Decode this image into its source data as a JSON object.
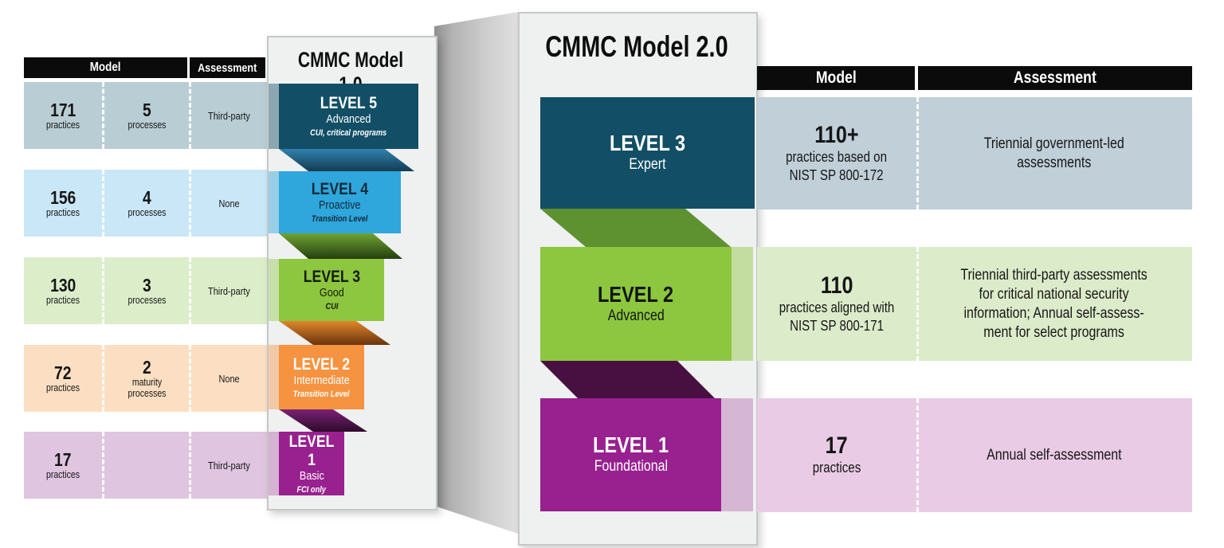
{
  "left_table": {
    "header": {
      "model": "Model",
      "assessment": "Assessment"
    },
    "rows": [
      {
        "practices_value": "171",
        "practices_label": "practices",
        "processes_value": "5",
        "processes_label": "processes",
        "assessment": "Third-party"
      },
      {
        "practices_value": "156",
        "practices_label": "practices",
        "processes_value": "4",
        "processes_label": "processes",
        "assessment": "None"
      },
      {
        "practices_value": "130",
        "practices_label": "practices",
        "processes_value": "3",
        "processes_label": "processes",
        "assessment": "Third-party"
      },
      {
        "practices_value": "72",
        "practices_label": "practices",
        "processes_value": "2",
        "processes_label": "maturity\nprocesses",
        "assessment": "None"
      },
      {
        "practices_value": "17",
        "practices_label": "practices",
        "processes_value": "",
        "processes_label": "",
        "assessment": "Third-party"
      }
    ]
  },
  "model1": {
    "title": "CMMC Model 1.0",
    "levels": [
      {
        "name": "LEVEL 5",
        "subtitle": "Advanced",
        "note": "CUI, critical programs"
      },
      {
        "name": "LEVEL 4",
        "subtitle": "Proactive",
        "note": "Transition Level"
      },
      {
        "name": "LEVEL 3",
        "subtitle": "Good",
        "note": "CUI"
      },
      {
        "name": "LEVEL 2",
        "subtitle": "Intermediate",
        "note": "Transition Level"
      },
      {
        "name": "LEVEL 1",
        "subtitle": "Basic",
        "note": "FCI only"
      }
    ]
  },
  "model2": {
    "title": "CMMC Model 2.0",
    "levels": [
      {
        "name": "LEVEL 3",
        "subtitle": "Expert"
      },
      {
        "name": "LEVEL 2",
        "subtitle": "Advanced"
      },
      {
        "name": "LEVEL 1",
        "subtitle": "Foundational"
      }
    ]
  },
  "right_table": {
    "header": {
      "model": "Model",
      "assessment": "Assessment"
    },
    "rows": [
      {
        "count": "110+",
        "description": "practices based on\nNIST SP 800-172",
        "assessment": "Triennial government-led\nassessments"
      },
      {
        "count": "110",
        "description": "practices aligned with\nNIST SP 800-171",
        "assessment": "Triennial third-party assessments\nfor critical national security\ninformation; Annual self-assess-\nment for select programs"
      },
      {
        "count": "17",
        "description": "practices",
        "assessment": "Annual self-assessment"
      }
    ]
  },
  "colors": {
    "teal": "#124f66",
    "blue": "#2fa6dc",
    "green": "#8dc63f",
    "orange": "#f69340",
    "magenta": "#98218f",
    "ribbon_green": "#5e9130",
    "ribbon_purple": "#481041",
    "header_black": "#0b0b0b",
    "panel_bg": "#eff0f0",
    "left_row_colors": [
      "#b9cdd4",
      "#c9e7f7",
      "#dcedca",
      "#fcdfc2",
      "#dfc5e0"
    ],
    "right_row_colors": [
      "#c0cfd8",
      "#dcebc9",
      "#e9cbe5"
    ]
  }
}
